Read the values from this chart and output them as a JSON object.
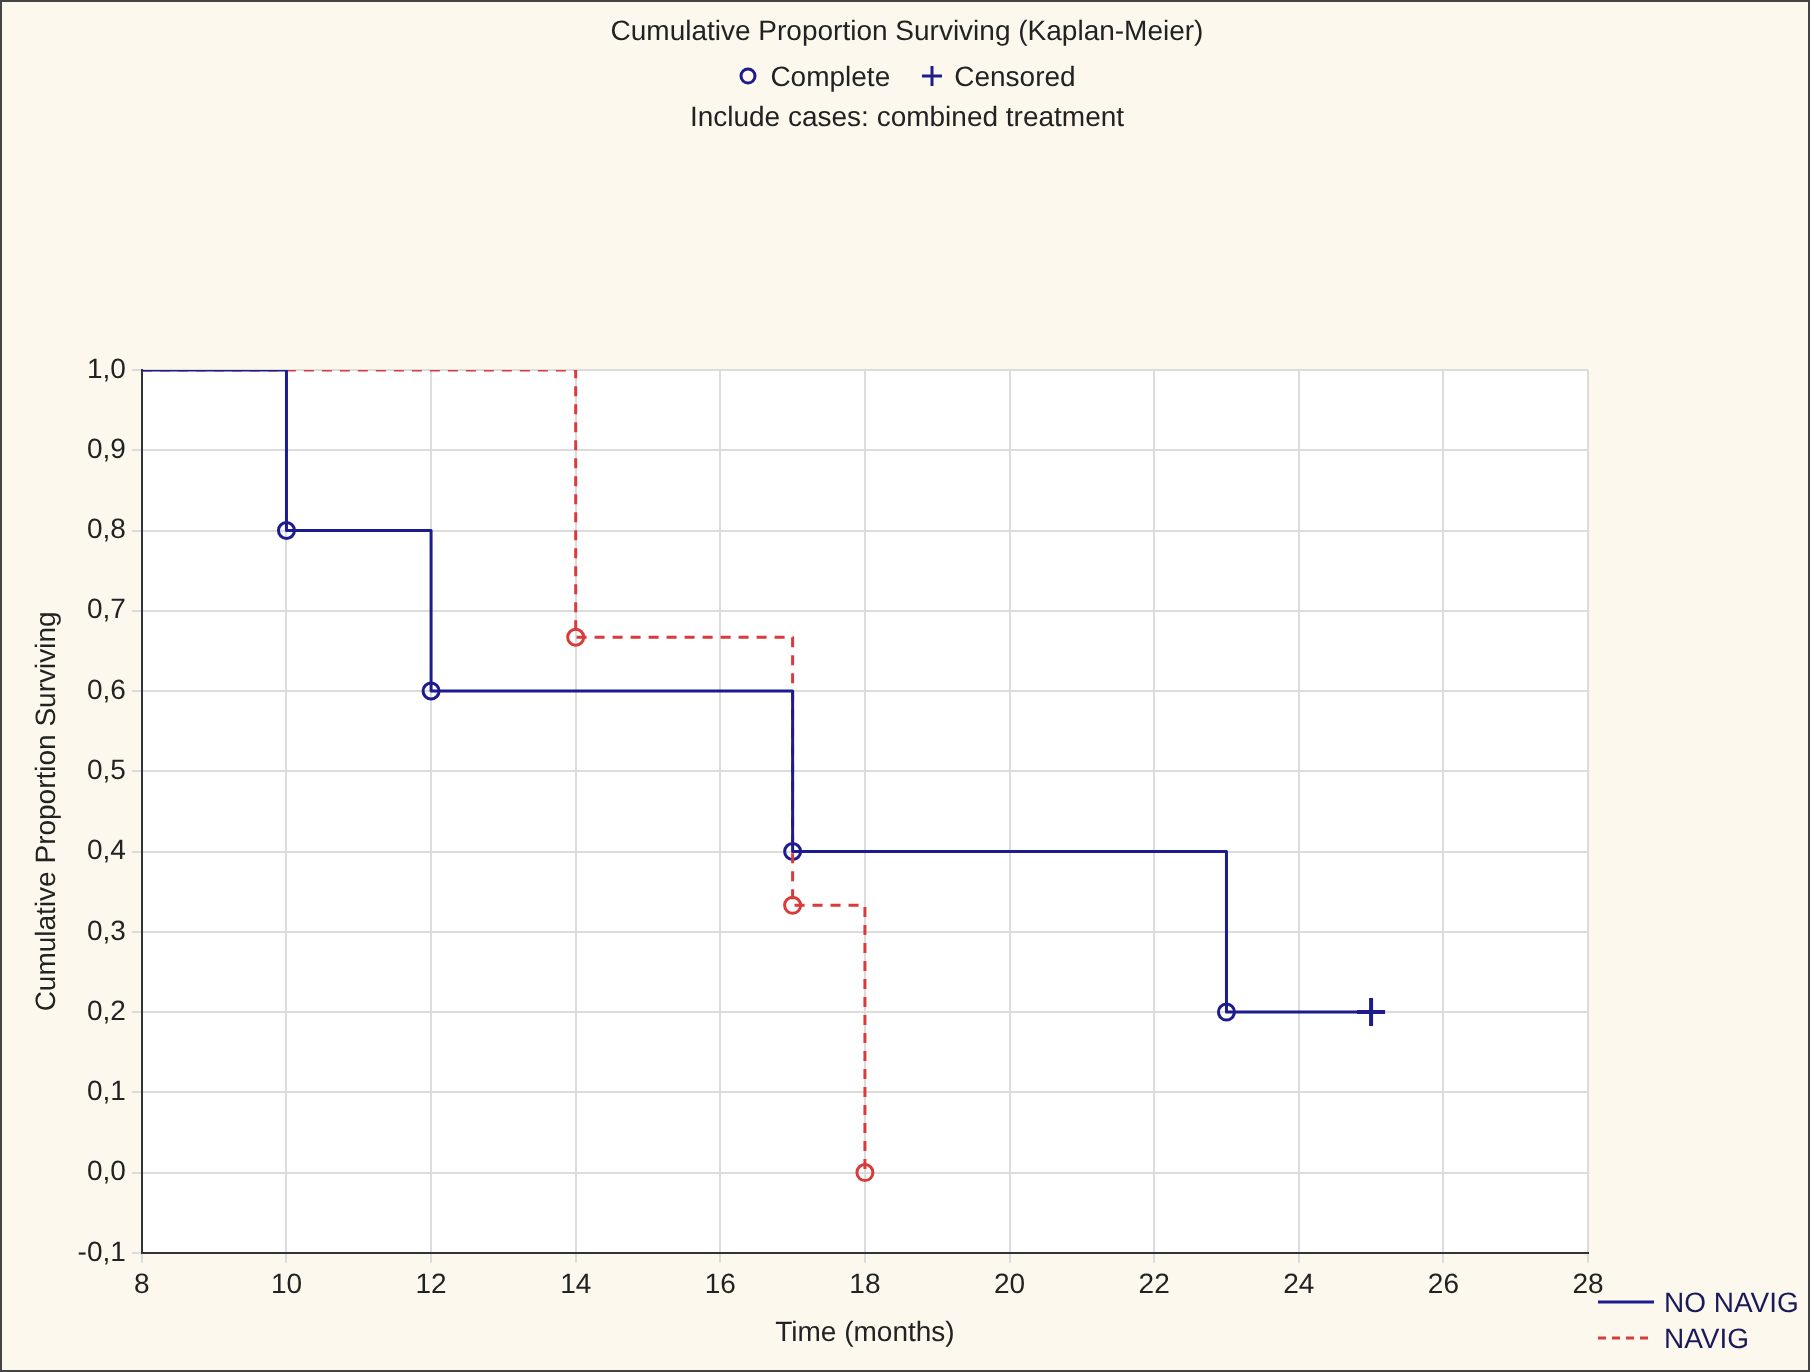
{
  "chart_data": {
    "type": "step",
    "title": "Cumulative Proportion Surviving (Kaplan-Meier)",
    "subtitle": "Include cases: combined treatment",
    "xlabel": "Time (months)",
    "ylabel": "Cumulative Proportion Surviving",
    "xlim": [
      8,
      28
    ],
    "xticks": [
      8,
      10,
      12,
      14,
      16,
      18,
      20,
      22,
      24,
      26,
      28
    ],
    "ylim": [
      -0.1,
      1.0
    ],
    "yticks": [
      {
        "value": -0.1,
        "label": "-0,1"
      },
      {
        "value": 0,
        "label": "0,0"
      },
      {
        "value": 0.1,
        "label": "0,1"
      },
      {
        "value": 0.2,
        "label": "0,2"
      },
      {
        "value": 0.3,
        "label": "0,3"
      },
      {
        "value": 0.4,
        "label": "0,4"
      },
      {
        "value": 0.5,
        "label": "0,5"
      },
      {
        "value": 0.6,
        "label": "0,6"
      },
      {
        "value": 0.7,
        "label": "0,7"
      },
      {
        "value": 0.8,
        "label": "0,8"
      },
      {
        "value": 0.9,
        "label": "0,9"
      },
      {
        "value": 1.0,
        "label": "1,0"
      }
    ],
    "annotations": [
      "Complete",
      "Censored"
    ],
    "grid": true,
    "legend": "bottom right",
    "marker": "none",
    "series": [
      {
        "name": "NO NAVIG",
        "color": "#1c1c8e",
        "line_style": "solid",
        "x": [
          8,
          10,
          12,
          17,
          23,
          25
        ],
        "values": [
          1.0,
          0.8,
          0.6,
          0.4,
          0.2,
          0.2
        ]
      },
      {
        "name": "NAVIG",
        "color": "#d93a3a",
        "line_style": "dashed",
        "x": [
          8,
          14,
          17,
          18
        ],
        "values": [
          1.0,
          0.667,
          0.333,
          0.0
        ]
      },
      {
        "type": "scatter",
        "marker": "circle",
        "colors": [
          "#1c1c8e",
          "#1c1c8e",
          "#1c1c8e",
          "#1c1c8e",
          "#d93a3a",
          "#d93a3a",
          "#d93a3a"
        ],
        "x": [
          10,
          12,
          17,
          23,
          14,
          17,
          18
        ],
        "values": [
          0.8,
          0.6,
          0.4,
          0.2,
          0.667,
          0.333,
          0.0
        ]
      },
      {
        "type": "scatter",
        "marker": "cross",
        "color": "#1c1c8e",
        "x": [
          25
        ],
        "values": [
          0.2
        ]
      }
    ]
  }
}
